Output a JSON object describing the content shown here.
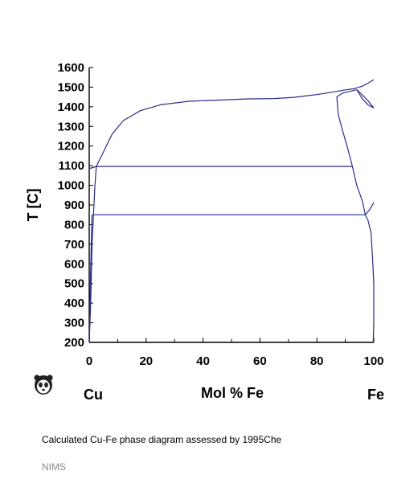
{
  "chart_data": {
    "type": "line",
    "title": "",
    "xlabel": "Mol % Fe",
    "ylabel": "T [C]",
    "xlim": [
      0,
      100
    ],
    "ylim": [
      200,
      1600
    ],
    "x_ticks": [
      0,
      20,
      40,
      60,
      80,
      100
    ],
    "y_ticks": [
      200,
      300,
      400,
      500,
      600,
      700,
      800,
      900,
      1000,
      1100,
      1200,
      1300,
      1400,
      1500,
      1600
    ],
    "grid": false,
    "legend": "none",
    "line_color": "#2b2b8c",
    "element_left": "Cu",
    "element_right": "Fe",
    "series": [
      {
        "x": [
          0,
          2.5,
          5,
          8,
          12,
          18,
          25,
          35,
          45,
          55,
          65,
          72,
          80,
          86,
          90,
          93,
          96,
          98,
          100
        ],
        "y": [
          1085,
          1096,
          1170,
          1260,
          1330,
          1380,
          1410,
          1428,
          1434,
          1440,
          1442,
          1448,
          1462,
          1476,
          1486,
          1492,
          1505,
          1520,
          1538
        ]
      },
      {
        "x": [
          0,
          2.5
        ],
        "y": [
          1085,
          1096
        ]
      },
      {
        "x": [
          2.5,
          92.5
        ],
        "y": [
          1096,
          1096
        ]
      },
      {
        "x": [
          1,
          97
        ],
        "y": [
          850,
          850
        ]
      },
      {
        "x": [
          92.5,
          91,
          89,
          87.5,
          87,
          89,
          92,
          94
        ],
        "y": [
          1096,
          1180,
          1280,
          1360,
          1450,
          1470,
          1480,
          1487
        ]
      },
      {
        "x": [
          92.5,
          94,
          96,
          97
        ],
        "y": [
          1096,
          1000,
          920,
          850
        ]
      },
      {
        "x": [
          94,
          96,
          98,
          100
        ],
        "y": [
          1487,
          1440,
          1410,
          1394
        ]
      },
      {
        "x": [
          94,
          96,
          98,
          100
        ],
        "y": [
          1487,
          1460,
          1430,
          1394
        ]
      },
      {
        "x": [
          97,
          98.5,
          100
        ],
        "y": [
          850,
          875,
          912
        ]
      },
      {
        "x": [
          97,
          98,
          99,
          99.5,
          100,
          100,
          99.8
        ],
        "y": [
          850,
          820,
          760,
          650,
          500,
          300,
          200
        ]
      },
      {
        "x": [
          0,
          0.5,
          1,
          2,
          2.5
        ],
        "y": [
          200,
          400,
          700,
          1000,
          1096
        ]
      },
      {
        "x": [
          0.05,
          0.3,
          0.8,
          1
        ],
        "y": [
          200,
          450,
          750,
          850
        ]
      }
    ]
  },
  "x_axis": {
    "label": "Mol % Fe",
    "left_element": "Cu",
    "right_element": "Fe"
  },
  "y_axis": {
    "label": "T [C]"
  },
  "caption": "Calculated Cu-Fe phase diagram assessed by 1995Che",
  "source": "NIMS",
  "logo": {
    "icon": "panda-icon"
  }
}
